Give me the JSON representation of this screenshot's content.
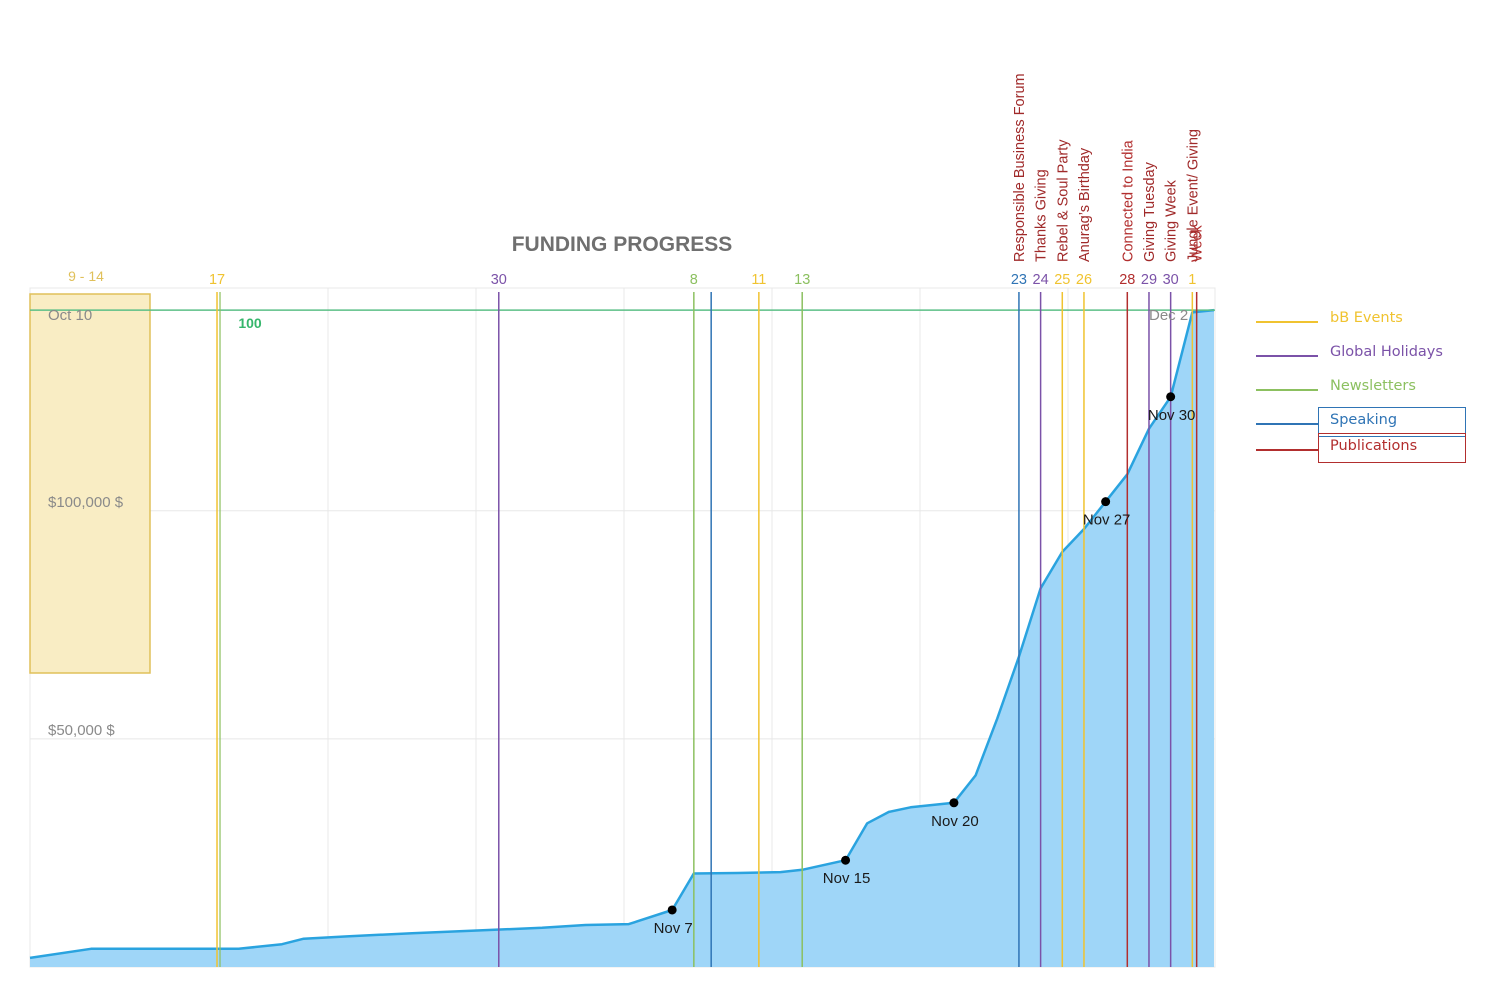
{
  "colors": {
    "area": "#9fd6f8",
    "line": "#2aa3df",
    "grid": "#e8e8e8",
    "highlight_fill": "#f9edc4",
    "highlight_stroke": "#e0c05a",
    "target_line": "#5bbf86",
    "target_label": "#36b66c",
    "axis_text": "#8a8a8a",
    "title": "#6f6f6f",
    "events": "#f0c330",
    "holidays": "#7b52a8",
    "newsletters": "#8cc060",
    "speaking": "#2f74b5",
    "publications": "#b22e2e",
    "point": "#000000"
  },
  "chart_data": {
    "type": "area",
    "title": "FUNDING PROGRESS",
    "x_start_label": "Oct 10",
    "x_end_label": "Dec 2",
    "y_tick_labels": [
      {
        "value": 50000,
        "label": "$50,000 $"
      },
      {
        "value": 100000,
        "label": "$100,000 $"
      }
    ],
    "target": {
      "value": 144000,
      "label": "100"
    },
    "highlight_range": {
      "label": "9 - 14",
      "x": [
        "Oct 10",
        "Oct 14"
      ]
    },
    "series": [
      {
        "points": [
          [
            "Oct 10",
            2000
          ],
          [
            "Oct 12",
            4000
          ],
          [
            "Oct 18",
            4000
          ],
          [
            "Oct 20",
            5000
          ],
          [
            "Oct 21",
            6200
          ],
          [
            "Oct 23",
            6700
          ],
          [
            "Oct 26",
            7400
          ],
          [
            "Oct 29",
            8000
          ],
          [
            "Nov 1",
            8600
          ],
          [
            "Nov 3",
            9200
          ],
          [
            "Nov 5",
            9400
          ],
          [
            "Nov 7",
            12500
          ],
          [
            "Nov 8",
            20500
          ],
          [
            "Nov 10",
            20600
          ],
          [
            "Nov 12",
            20800
          ],
          [
            "Nov 13",
            21300
          ],
          [
            "Nov 15",
            23400
          ],
          [
            "Nov 16",
            31500
          ],
          [
            "Nov 17",
            34000
          ],
          [
            "Nov 18",
            35000
          ],
          [
            "Nov 20",
            36000
          ],
          [
            "Nov 21",
            42000
          ],
          [
            "Nov 22",
            54500
          ],
          [
            "Nov 23",
            68000
          ],
          [
            "Nov 24",
            83000
          ],
          [
            "Nov 25",
            91000
          ],
          [
            "Nov 26",
            96000
          ],
          [
            "Nov 27",
            102000
          ],
          [
            "Nov 28",
            108000
          ],
          [
            "Nov 29",
            118000
          ],
          [
            "Nov 30",
            125000
          ],
          [
            "Dec 1",
            143500
          ],
          [
            "Dec 2",
            144000
          ]
        ],
        "labeled_points": [
          {
            "x": "Nov 7",
            "y": 12500,
            "label": "Nov 7"
          },
          {
            "x": "Nov 15",
            "y": 23400,
            "label": "Nov 15"
          },
          {
            "x": "Nov 20",
            "y": 36000,
            "label": "Nov 20"
          },
          {
            "x": "Nov 27",
            "y": 102000,
            "label": "Nov 27"
          },
          {
            "x": "Nov 30",
            "y": 125000,
            "label": "Nov 30"
          }
        ]
      }
    ],
    "markers": [
      {
        "x": "Oct 17",
        "label": "17",
        "category": "events",
        "doubled": true
      },
      {
        "x": "Oct 30",
        "label": "30",
        "category": "holidays"
      },
      {
        "x": "Nov 8",
        "label": "8",
        "category": "newsletters"
      },
      {
        "x": "Nov 8",
        "label": "",
        "category": "speaking",
        "offset": 0.8
      },
      {
        "x": "Nov 11",
        "label": "11",
        "category": "events"
      },
      {
        "x": "Nov 13",
        "label": "13",
        "category": "newsletters"
      },
      {
        "x": "Nov 23",
        "label": "23",
        "category": "speaking",
        "event": "Responsible Business Forum"
      },
      {
        "x": "Nov 24",
        "label": "24",
        "category": "holidays",
        "event": "Thanks Giving"
      },
      {
        "x": "Nov 25",
        "label": "25",
        "category": "events",
        "event": "Rebel & Soul Party"
      },
      {
        "x": "Nov 26",
        "label": "26",
        "category": "events",
        "event": "Anurag’s Birthday"
      },
      {
        "x": "Nov 28",
        "label": "28",
        "category": "publications",
        "event": "Connected to India"
      },
      {
        "x": "Nov 29",
        "label": "29",
        "category": "holidays",
        "event": "Giving Tuesday"
      },
      {
        "x": "Nov 30",
        "label": "30",
        "category": "holidays",
        "event": "Giving Week"
      },
      {
        "x": "Dec 1",
        "label": "1",
        "category": "events",
        "event": "Jungle Event/ Giving"
      },
      {
        "x": "Dec 1",
        "label": "",
        "category": "publications",
        "event": "Week",
        "offset": 0.2
      }
    ],
    "legend_position": "right",
    "legend": [
      {
        "key": "events",
        "label": "bB Events"
      },
      {
        "key": "holidays",
        "label": "Global Holidays"
      },
      {
        "key": "newsletters",
        "label": "Newsletters"
      },
      {
        "key": "speaking",
        "label": "Speaking",
        "boxed": true
      },
      {
        "key": "publications",
        "label": "Publications",
        "boxed": true
      }
    ]
  }
}
